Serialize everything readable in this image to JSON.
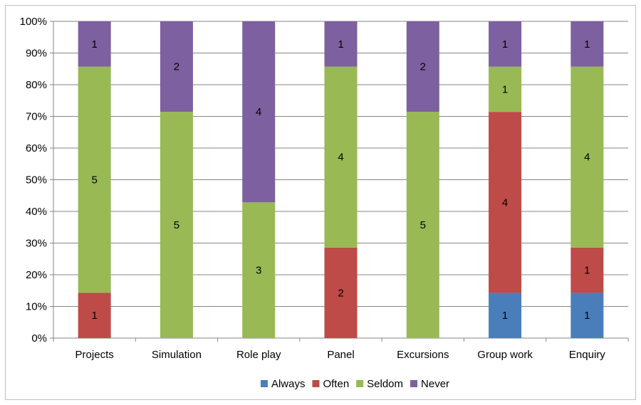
{
  "chart_data": {
    "type": "bar",
    "stacked": "percent",
    "categories": [
      "Projects",
      "Simulation",
      "Role play",
      "Panel",
      "Excursions",
      "Group work",
      "Enquiry"
    ],
    "series": [
      {
        "name": "Always",
        "color": "#4a7ebb",
        "values": [
          0,
          0,
          0,
          0,
          0,
          1,
          1
        ]
      },
      {
        "name": "Often",
        "color": "#be4b48",
        "values": [
          1,
          0,
          0,
          2,
          0,
          4,
          1
        ]
      },
      {
        "name": "Seldom",
        "color": "#98b954",
        "values": [
          5,
          5,
          3,
          4,
          5,
          1,
          4
        ]
      },
      {
        "name": "Never",
        "color": "#7d60a0",
        "values": [
          1,
          2,
          4,
          1,
          2,
          1,
          1
        ]
      }
    ],
    "yticks": [
      "0%",
      "10%",
      "20%",
      "30%",
      "40%",
      "50%",
      "60%",
      "70%",
      "80%",
      "90%",
      "100%"
    ],
    "ylim": [
      0,
      100
    ],
    "grid": true,
    "legend_position": "bottom",
    "title": "",
    "xlabel": "",
    "ylabel": ""
  }
}
